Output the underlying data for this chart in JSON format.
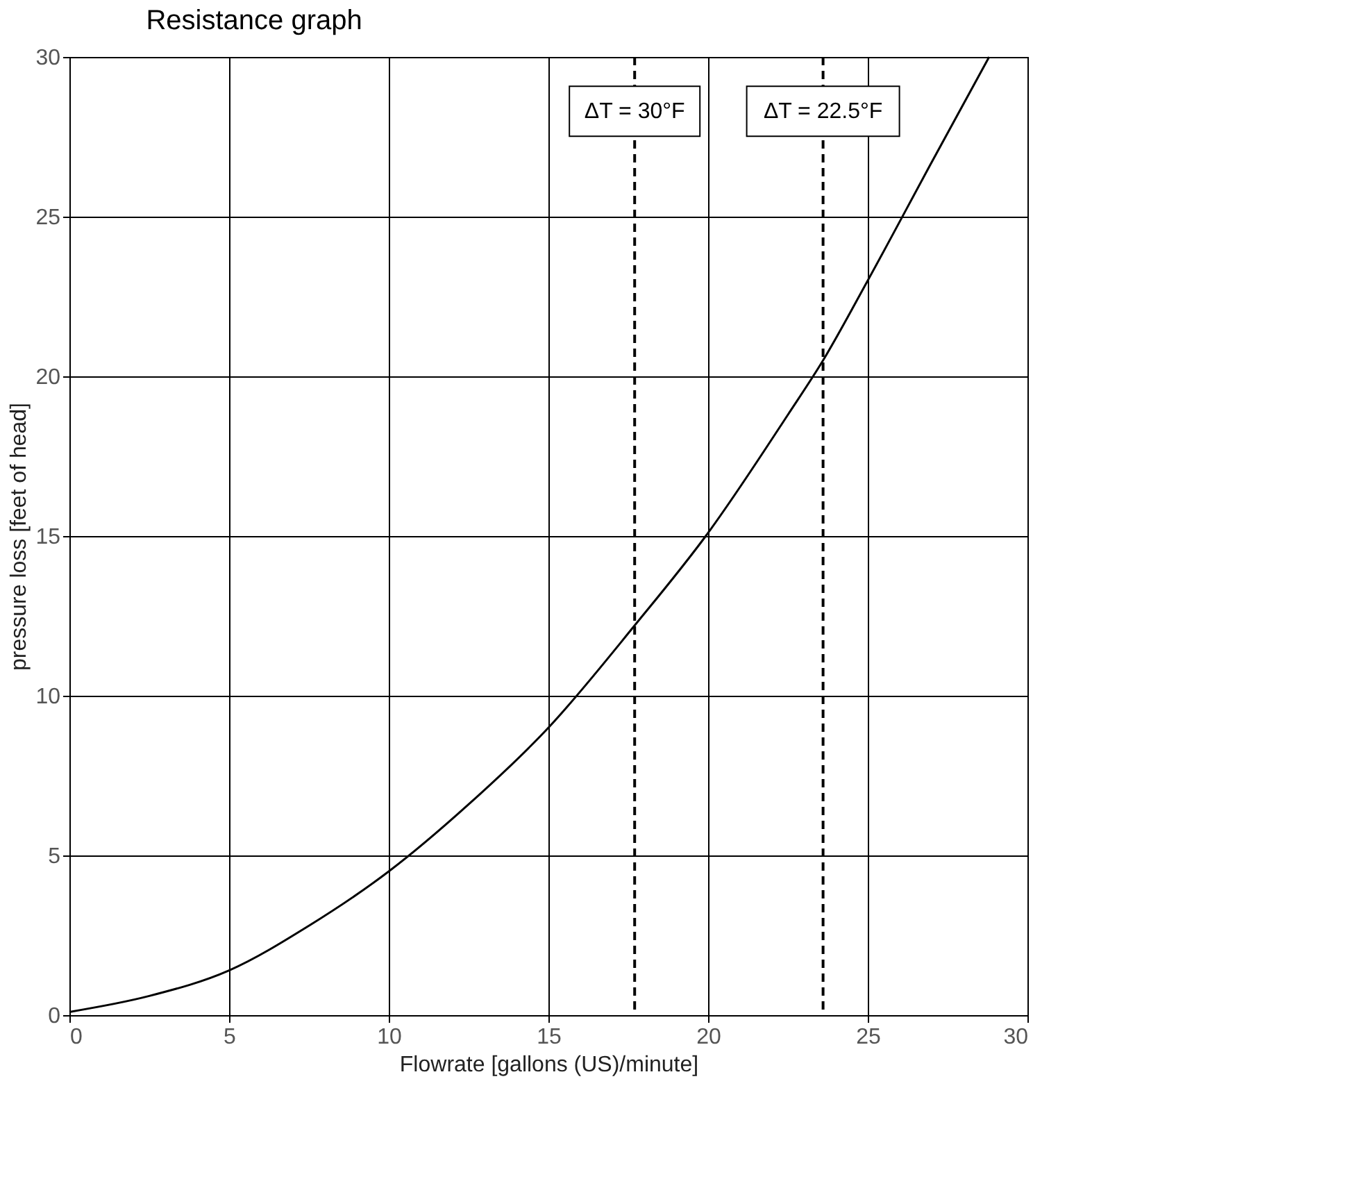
{
  "chart_data": {
    "type": "line",
    "title": "Resistance graph",
    "xlabel": "Flowrate [gallons (US)/minute]",
    "ylabel": "pressure loss [feet of head]",
    "x": [
      0,
      2.5,
      5,
      7.5,
      10,
      12.5,
      15,
      17.7,
      20,
      22.5,
      23.6,
      25,
      27,
      28.8
    ],
    "series": [
      {
        "color": "#000000",
        "values": [
          0.1,
          0.6,
          1.4,
          2.8,
          4.5,
          6.6,
          9,
          12.2,
          15.1,
          18.8,
          20.5,
          23,
          26.7,
          30
        ]
      }
    ],
    "xlim": [
      0,
      30
    ],
    "ylim": [
      0,
      30
    ],
    "xticks": [
      0,
      5,
      10,
      15,
      20,
      25,
      30
    ],
    "yticks": [
      0,
      5,
      10,
      15,
      20,
      25,
      30
    ],
    "grid": true,
    "marker": "none",
    "line_style": "solid",
    "ref_lines": [
      {
        "axis": "x",
        "value": 17.7,
        "color": "#000000",
        "line_style": "dashed"
      },
      {
        "axis": "x",
        "value": 23.6,
        "color": "#000000",
        "line_style": "dashed"
      }
    ],
    "annotations": [
      {
        "text": "ΔT = 30°F",
        "x": 17.7,
        "y": 28.3
      },
      {
        "text": "ΔT = 22.5°F",
        "x": 23.6,
        "y": 28.3
      }
    ]
  }
}
